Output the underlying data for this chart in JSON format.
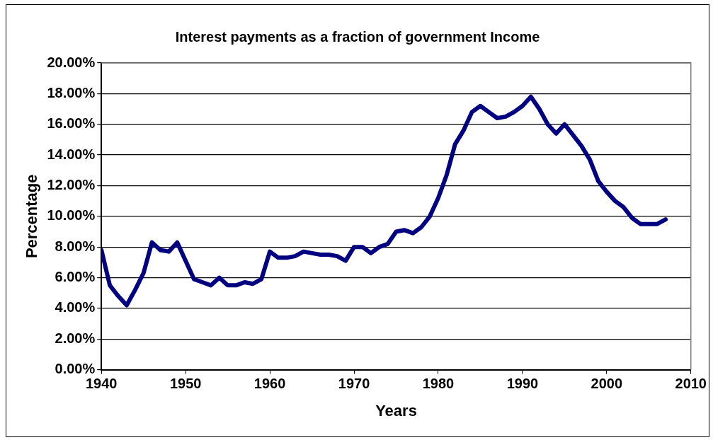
{
  "chart_data": {
    "type": "line",
    "title": "Interest payments as a fraction of government Income",
    "xlabel": "Years",
    "ylabel": "Percentage",
    "x": [
      1940,
      1941,
      1942,
      1943,
      1944,
      1945,
      1946,
      1947,
      1948,
      1949,
      1950,
      1951,
      1952,
      1953,
      1954,
      1955,
      1956,
      1957,
      1958,
      1959,
      1960,
      1961,
      1962,
      1963,
      1964,
      1965,
      1966,
      1967,
      1968,
      1969,
      1970,
      1971,
      1972,
      1973,
      1974,
      1975,
      1976,
      1977,
      1978,
      1979,
      1980,
      1981,
      1982,
      1983,
      1984,
      1985,
      1986,
      1987,
      1988,
      1989,
      1990,
      1991,
      1992,
      1993,
      1994,
      1995,
      1996,
      1997,
      1998,
      1999,
      2000,
      2001,
      2002,
      2003,
      2004,
      2005,
      2006,
      2007
    ],
    "series": [
      {
        "color": "#000080",
        "values": [
          7.8,
          5.5,
          4.8,
          4.2,
          5.2,
          6.3,
          8.3,
          7.8,
          7.7,
          8.3,
          7.1,
          5.9,
          5.7,
          5.5,
          6.0,
          5.5,
          5.5,
          5.7,
          5.6,
          5.9,
          7.7,
          7.3,
          7.3,
          7.4,
          7.7,
          7.6,
          7.5,
          7.5,
          7.4,
          7.1,
          8.0,
          8.0,
          7.6,
          8.0,
          8.2,
          9.0,
          9.1,
          8.9,
          9.3,
          10.0,
          11.2,
          12.7,
          14.7,
          15.6,
          16.8,
          17.2,
          16.8,
          16.4,
          16.5,
          16.8,
          17.2,
          17.8,
          17.0,
          16.0,
          15.4,
          16.0,
          15.3,
          14.6,
          13.7,
          12.3,
          11.6,
          11.0,
          10.6,
          9.9,
          9.5,
          9.5,
          9.5,
          9.8
        ]
      }
    ],
    "xlim": [
      1940,
      2010
    ],
    "xticks": [
      1940,
      1950,
      1960,
      1970,
      1980,
      1990,
      2000,
      2010
    ],
    "ylim": [
      0,
      20
    ],
    "yticks": [
      {
        "value": 0,
        "label": "0.00%"
      },
      {
        "value": 2,
        "label": "2.00%"
      },
      {
        "value": 4,
        "label": "4.00%"
      },
      {
        "value": 6,
        "label": "6.00%"
      },
      {
        "value": 8,
        "label": "8.00%"
      },
      {
        "value": 10,
        "label": "10.00%"
      },
      {
        "value": 12,
        "label": "12.00%"
      },
      {
        "value": 14,
        "label": "14.00%"
      },
      {
        "value": 16,
        "label": "16.00%"
      },
      {
        "value": 18,
        "label": "18.00%"
      },
      {
        "value": 20,
        "label": "20.00%"
      }
    ],
    "grid": "y",
    "legend": false,
    "marker": "none",
    "line_style": "solid"
  }
}
